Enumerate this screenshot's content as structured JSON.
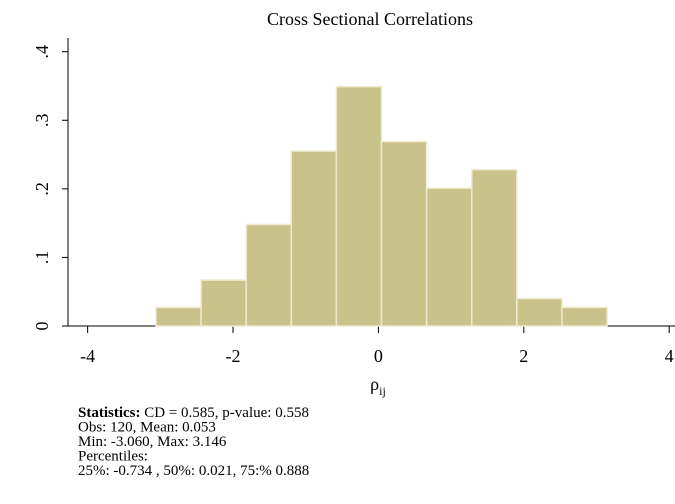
{
  "chart_data": {
    "type": "histogram",
    "title": "Cross Sectional Correlations",
    "x_label": "ρ",
    "x_label_subscript": "ij",
    "bins": [
      -3.06,
      -2.4394,
      -1.8188,
      -1.1982,
      -0.5776,
      0.043,
      0.6636,
      1.2842,
      1.9048,
      2.5254,
      3.146
    ],
    "values": [
      0.027,
      0.067,
      0.148,
      0.255,
      0.349,
      0.269,
      0.201,
      0.228,
      0.04,
      0.027
    ],
    "color": "#c9c28a",
    "edge_color": "#eeebd0",
    "xlim": [
      -4.27,
      4.08
    ],
    "xticks": [
      -4,
      -2,
      0,
      2,
      4
    ],
    "ylim": [
      0,
      0.42
    ],
    "yticks": [
      0,
      {
        "value": 0.1,
        "label": ".1"
      },
      {
        "value": 0.2,
        "label": ".2"
      },
      {
        "value": 0.3,
        "label": ".3"
      },
      {
        "value": 0.4,
        "label": ".4"
      }
    ],
    "stats_label": "Statistics:",
    "stats_lines": [
      "CD = 0.585, p-value: 0.558",
      "Obs: 120, Mean: 0.053",
      "Min: -3.060, Max: 3.146",
      "Percentiles:",
      "25%: -0.734 , 50%: 0.021, 75:% 0.888"
    ]
  }
}
